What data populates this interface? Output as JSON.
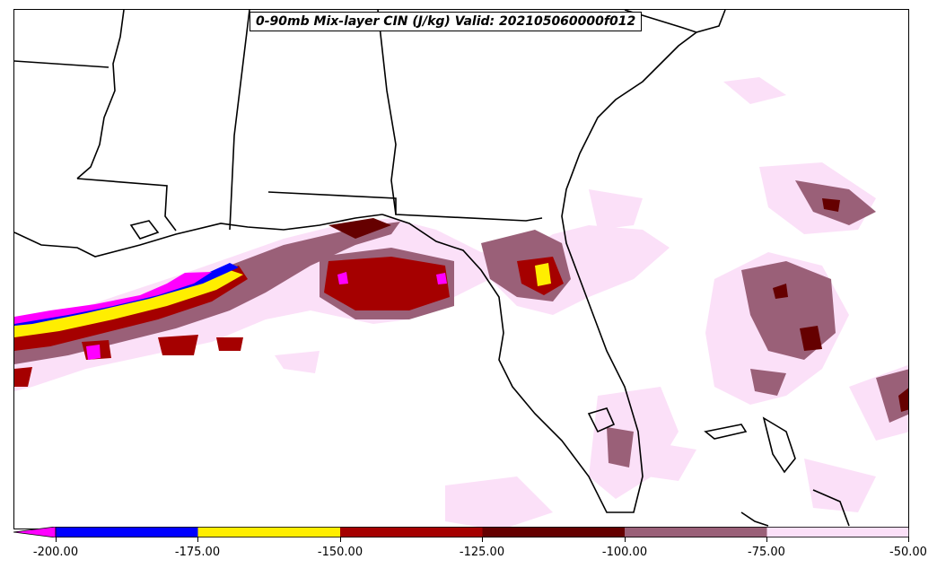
{
  "title": "0-90mb Mix-layer CIN (J/kg) Valid: 202105060000f012",
  "colorbar": {
    "labels": [
      "-200.00",
      "-175.00",
      "-150.00",
      "-125.00",
      "-100.00",
      "-75.00",
      "-50.00"
    ],
    "colors": [
      "#ff00ff",
      "#0000ff",
      "#ffee00",
      "#a50000",
      "#650000",
      "#9a6078",
      "#fbe0f8"
    ],
    "extend": "min"
  },
  "legend": {
    "below_-200": "#ff00ff",
    "-200_to_-175": "#0000ff",
    "-175_to_-150": "#ffee00",
    "-150_to_-125": "#a50000",
    "-125_to_-100": "#650000",
    "-100_to_-75": "#9a6078",
    "-75_to_-50": "#fbe0f8"
  }
}
